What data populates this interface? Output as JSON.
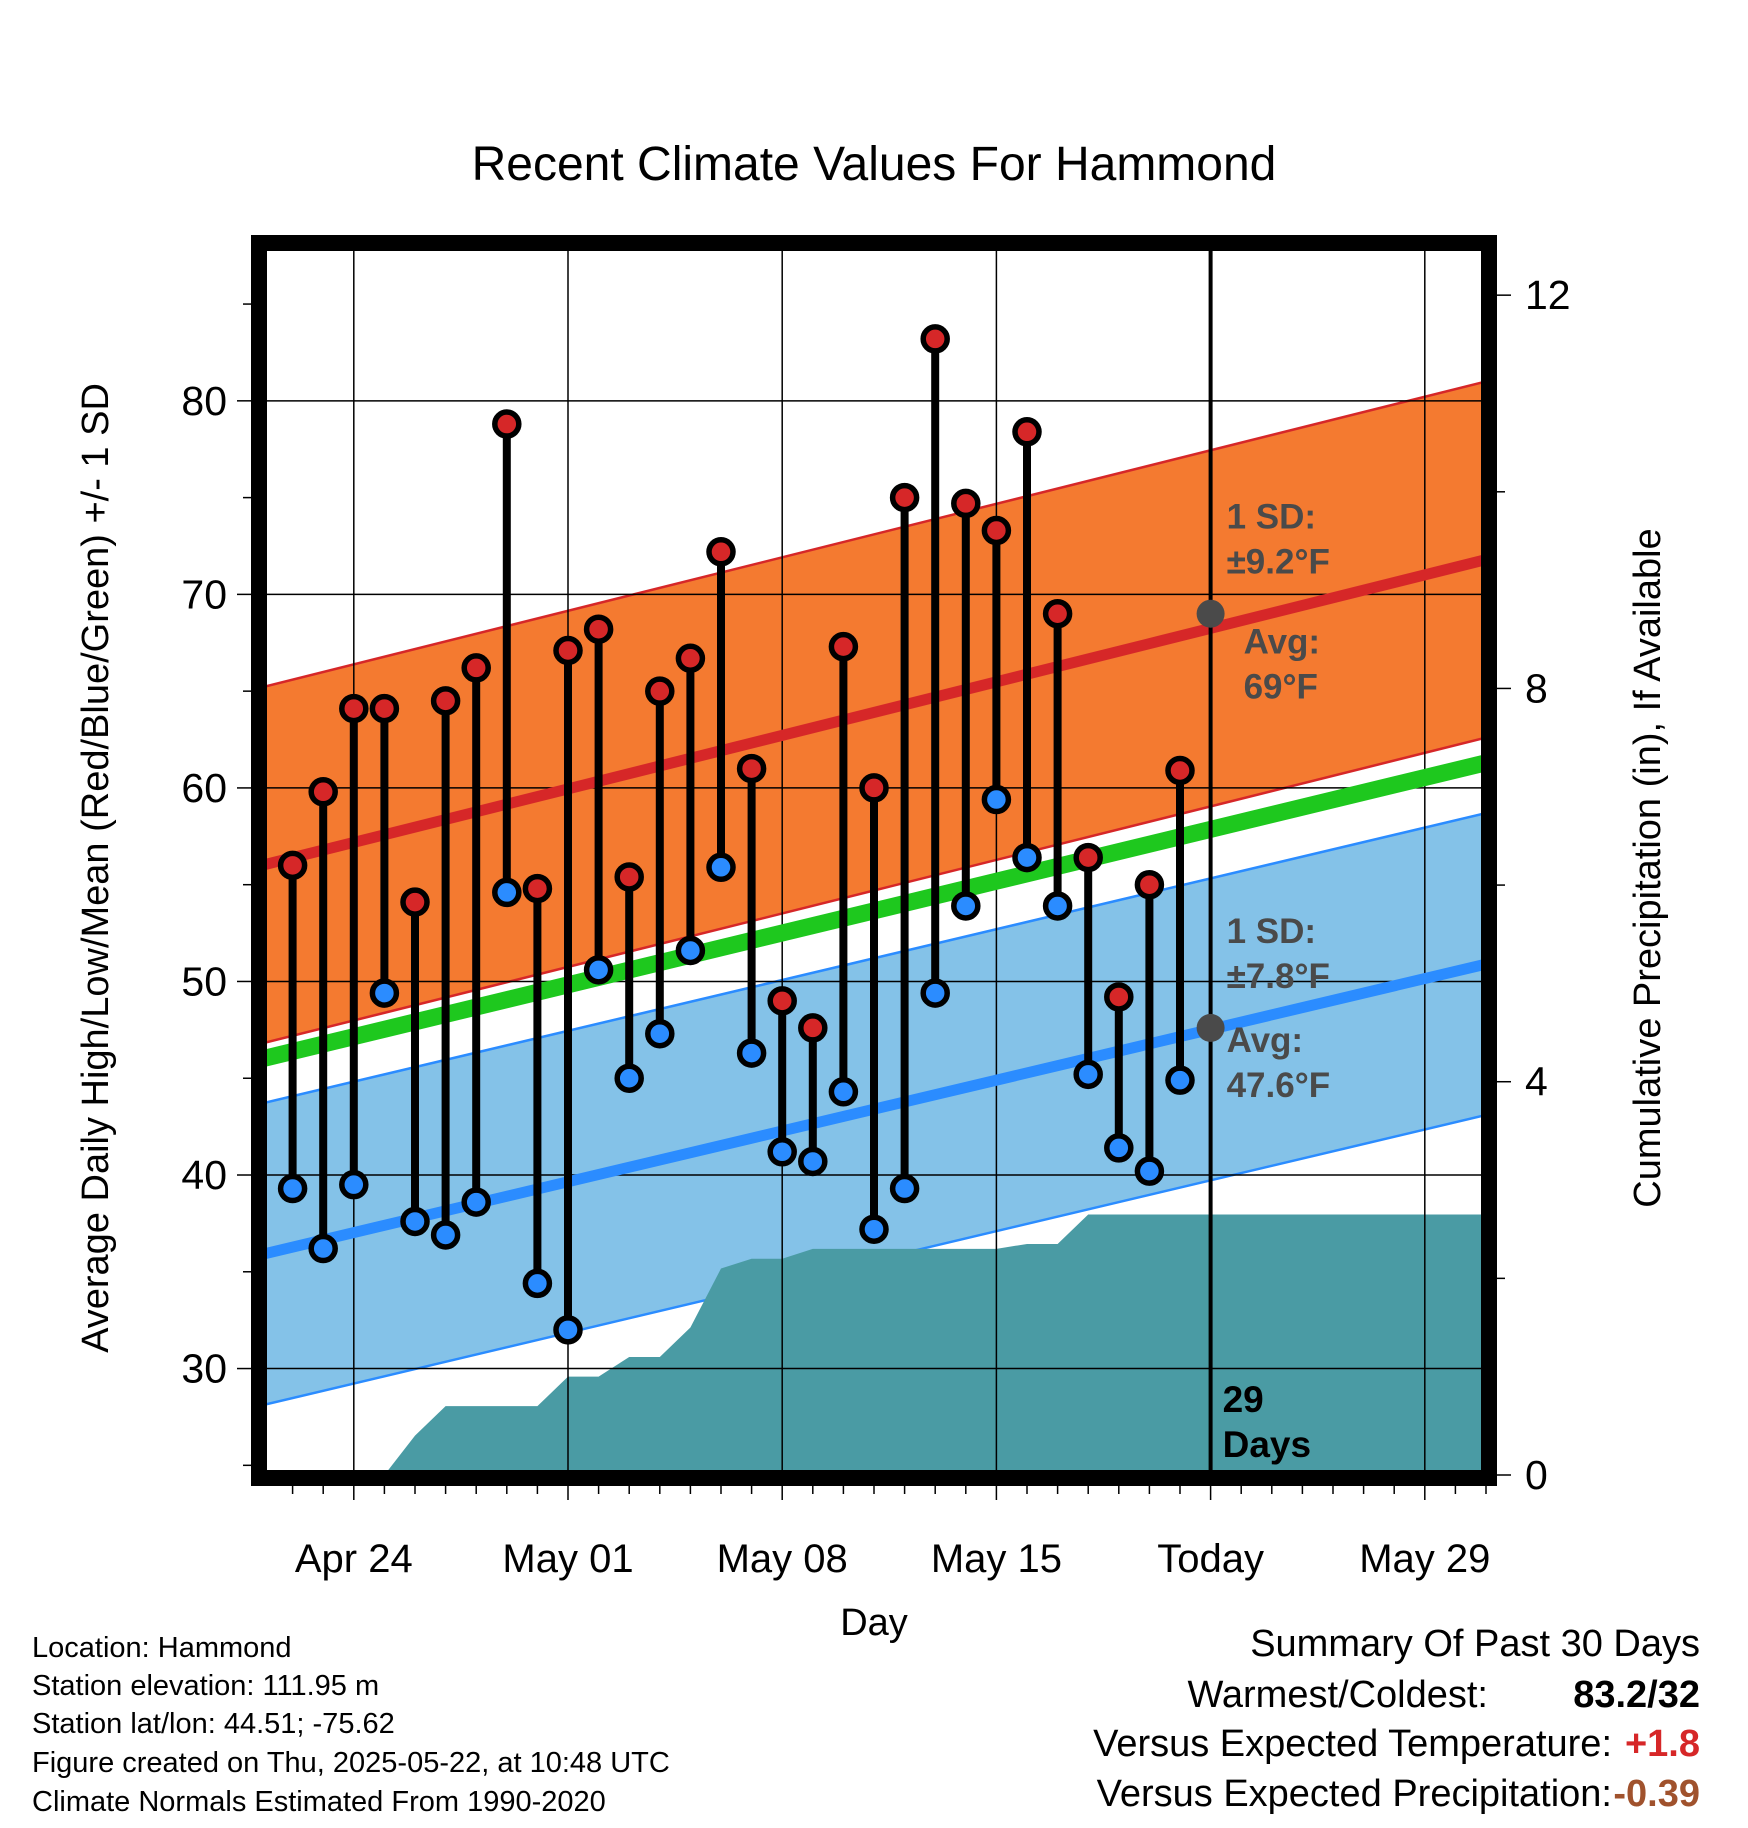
{
  "chart_data": {
    "type": "line",
    "title": "Recent Climate Values For Hammond",
    "xlabel": "Day",
    "ylabel_left": "Average Daily High/Low/Mean (Red/Blue/Green) +/- 1 SD",
    "ylabel_right": "Cumulative Precipitation (in), If Available",
    "x_ticks": [
      "Apr 24",
      "May 01",
      "May 08",
      "May 15",
      "Today",
      "May 29"
    ],
    "x_tick_dates": [
      "2025-04-24",
      "2025-05-01",
      "2025-05-08",
      "2025-05-15",
      "2025-05-22",
      "2025-05-29"
    ],
    "today_date": "2025-05-22",
    "y_left_ticks": [
      30,
      40,
      50,
      60,
      70,
      80
    ],
    "y_right_ticks": [
      0,
      4,
      8,
      12
    ],
    "ylim_left": [
      24.5,
      88
    ],
    "ylim_right": [
      0,
      12.5
    ],
    "xlim": [
      "2025-04-21",
      "2025-05-31"
    ],
    "days": [
      "2025-04-22",
      "2025-04-23",
      "2025-04-24",
      "2025-04-25",
      "2025-04-26",
      "2025-04-27",
      "2025-04-28",
      "2025-04-29",
      "2025-04-30",
      "2025-05-01",
      "2025-05-02",
      "2025-05-03",
      "2025-05-04",
      "2025-05-05",
      "2025-05-06",
      "2025-05-07",
      "2025-05-08",
      "2025-05-09",
      "2025-05-10",
      "2025-05-11",
      "2025-05-12",
      "2025-05-13",
      "2025-05-14",
      "2025-05-15",
      "2025-05-16",
      "2025-05-17",
      "2025-05-18",
      "2025-05-19",
      "2025-05-20",
      "2025-05-21"
    ],
    "daily_high": [
      56,
      59.8,
      64.1,
      64.1,
      54.1,
      64.5,
      66.2,
      78.8,
      54.8,
      67.1,
      68.2,
      55.4,
      65,
      66.7,
      72.2,
      61,
      49,
      47.6,
      67.3,
      60,
      75,
      83.2,
      74.7,
      73.3,
      78.4,
      69,
      56.4,
      49.2,
      55,
      60.9
    ],
    "daily_low": [
      39.3,
      36.2,
      39.5,
      49.4,
      37.6,
      36.9,
      38.6,
      54.6,
      34.4,
      32,
      50.6,
      45,
      47.3,
      51.6,
      55.9,
      46.3,
      41.2,
      40.7,
      44.3,
      37.2,
      39.3,
      49.4,
      53.9,
      59.4,
      56.4,
      53.9,
      45.2,
      41.4,
      40.2,
      44.9
    ],
    "low_above_normal": [
      false,
      false,
      false,
      true,
      false,
      false,
      false,
      true,
      false,
      false,
      false,
      false,
      false,
      false,
      true,
      false,
      false,
      false,
      false,
      false,
      false,
      false,
      true,
      true,
      true,
      true,
      false,
      false,
      false,
      false
    ],
    "normal_series": [
      {
        "name": "high",
        "start": 56.0,
        "end": 71.8,
        "sd": 9.2,
        "color": "#d62728"
      },
      {
        "name": "mean",
        "start": 46.0,
        "end": 61.3,
        "color": "#1ec81e"
      },
      {
        "name": "low",
        "start": 35.9,
        "end": 50.9,
        "sd": 7.8,
        "color": "#2b8cff"
      }
    ],
    "cumulative_precip": [
      [
        "2025-04-22",
        0
      ],
      [
        "2025-04-23",
        0
      ],
      [
        "2025-04-24",
        0
      ],
      [
        "2025-04-25",
        0
      ],
      [
        "2025-04-26",
        0.4
      ],
      [
        "2025-04-27",
        0.7
      ],
      [
        "2025-04-28",
        0.7
      ],
      [
        "2025-04-29",
        0.7
      ],
      [
        "2025-04-30",
        0.7
      ],
      [
        "2025-05-01",
        1.0
      ],
      [
        "2025-05-02",
        1.0
      ],
      [
        "2025-05-03",
        1.2
      ],
      [
        "2025-05-04",
        1.2
      ],
      [
        "2025-05-05",
        1.5
      ],
      [
        "2025-05-06",
        2.1
      ],
      [
        "2025-05-07",
        2.2
      ],
      [
        "2025-05-08",
        2.2
      ],
      [
        "2025-05-09",
        2.3
      ],
      [
        "2025-05-10",
        2.3
      ],
      [
        "2025-05-11",
        2.3
      ],
      [
        "2025-05-12",
        2.3
      ],
      [
        "2025-05-13",
        2.3
      ],
      [
        "2025-05-14",
        2.3
      ],
      [
        "2025-05-15",
        2.3
      ],
      [
        "2025-05-16",
        2.35
      ],
      [
        "2025-05-17",
        2.35
      ],
      [
        "2025-05-18",
        2.65
      ],
      [
        "2025-05-19",
        2.65
      ],
      [
        "2025-05-20",
        2.65
      ],
      [
        "2025-05-21",
        2.65
      ],
      [
        "2025-05-22",
        2.65
      ],
      [
        "2025-05-31",
        2.65
      ]
    ],
    "precip_color": "#4a9ba4",
    "high_band_color": "#f47a30",
    "low_band_color": "#84c2e8",
    "annotations": {
      "high_sd_label": "1 SD:",
      "high_sd_value": "±9.2°F",
      "high_avg_label": "Avg:",
      "high_avg_value": "69°F",
      "high_avg": 69,
      "low_sd_label": "1 SD:",
      "low_sd_value": "±7.8°F",
      "low_avg_label": "Avg:",
      "low_avg_value": "47.6°F",
      "low_avg": 47.6,
      "days_count": "29",
      "days_word": "Days"
    }
  },
  "info": {
    "location": "Location: Hammond",
    "elevation": "Station elevation: 111.95 m",
    "latlon": "Station lat/lon: 44.51; -75.62",
    "created": "Figure created on Thu, 2025-05-22, at 10:48 UTC",
    "normals": "Climate Normals Estimated From 1990-2020"
  },
  "summary": {
    "heading": "Summary Of Past 30 Days",
    "warm_cold_label": "Warmest/Coldest:",
    "warm_cold_value": "83.2/32",
    "temp_label": "Versus Expected Temperature:",
    "temp_value": "+1.8",
    "temp_color": "#d62728",
    "precip_label": "Versus Expected Precipitation:",
    "precip_value": "-0.39",
    "precip_color": "#a0522d"
  }
}
